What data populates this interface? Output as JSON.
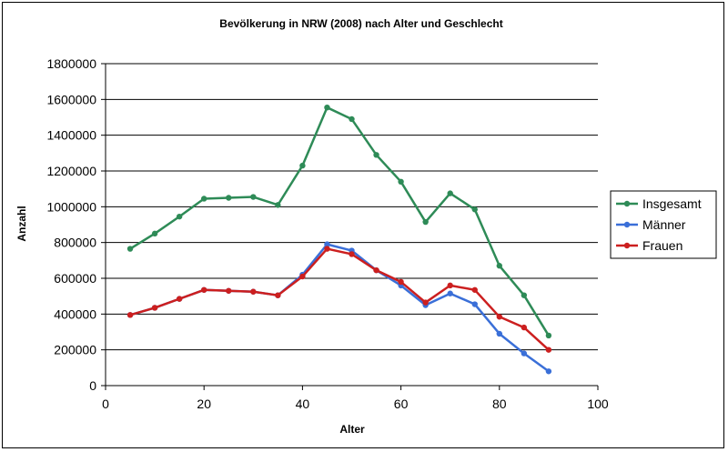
{
  "chart_data": {
    "type": "line",
    "title": "Bevölkerung in NRW (2008) nach Alter und Geschlecht",
    "xlabel": "Alter",
    "ylabel": "Anzahl",
    "xlim": [
      0,
      100
    ],
    "ylim": [
      0,
      1800000
    ],
    "x_ticks": [
      0,
      20,
      40,
      60,
      80,
      100
    ],
    "y_ticks": [
      0,
      200000,
      400000,
      600000,
      800000,
      1000000,
      1200000,
      1400000,
      1600000,
      1800000
    ],
    "grid": "horizontal",
    "legend_position": "right",
    "x": [
      5,
      10,
      15,
      20,
      25,
      30,
      35,
      40,
      45,
      50,
      55,
      60,
      65,
      70,
      75,
      80,
      85,
      90
    ],
    "series": [
      {
        "name": "Insgesamt",
        "color": "#2e8b57",
        "values": [
          765000,
          850000,
          945000,
          1045000,
          1050000,
          1055000,
          1010000,
          1230000,
          1555000,
          1490000,
          1290000,
          1140000,
          915000,
          1075000,
          985000,
          670000,
          505000,
          280000
        ]
      },
      {
        "name": "Männer",
        "color": "#3a6fd8",
        "values": [
          395000,
          435000,
          485000,
          535000,
          530000,
          525000,
          505000,
          620000,
          790000,
          755000,
          645000,
          560000,
          450000,
          515000,
          455000,
          290000,
          180000,
          80000
        ]
      },
      {
        "name": "Frauen",
        "color": "#cc1f1f",
        "values": [
          395000,
          435000,
          485000,
          535000,
          530000,
          525000,
          505000,
          610000,
          765000,
          735000,
          645000,
          580000,
          465000,
          560000,
          535000,
          385000,
          325000,
          200000
        ]
      }
    ]
  }
}
